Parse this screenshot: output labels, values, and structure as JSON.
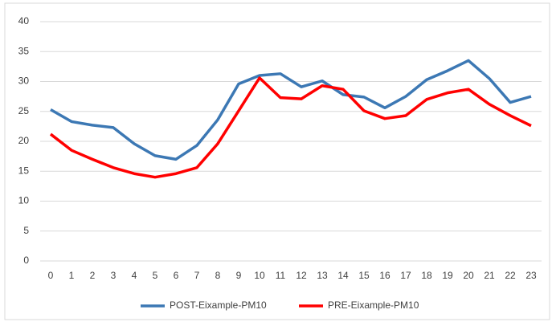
{
  "chart_data": {
    "type": "line",
    "categories": [
      "0",
      "1",
      "2",
      "3",
      "4",
      "5",
      "6",
      "7",
      "8",
      "9",
      "10",
      "11",
      "12",
      "13",
      "14",
      "15",
      "16",
      "17",
      "18",
      "19",
      "20",
      "21",
      "22",
      "23"
    ],
    "series": [
      {
        "name": "POST-Eixample-PM10",
        "color": "#3c78b4",
        "values": [
          25.3,
          23.3,
          22.7,
          22.3,
          19.6,
          17.6,
          17.0,
          19.3,
          23.6,
          29.6,
          31.0,
          31.3,
          29.1,
          30.1,
          27.8,
          27.4,
          25.6,
          27.5,
          30.3,
          31.8,
          33.5,
          30.5,
          26.5,
          27.5
        ]
      },
      {
        "name": "PRE-Eixample-PM10",
        "color": "#ff0000",
        "values": [
          21.2,
          18.5,
          17.0,
          15.6,
          14.6,
          14.0,
          14.6,
          15.6,
          19.6,
          25.1,
          30.6,
          27.3,
          27.1,
          29.3,
          28.7,
          25.1,
          23.8,
          24.3,
          27.0,
          28.1,
          28.7,
          26.2,
          24.3,
          22.6
        ]
      }
    ],
    "ylim": [
      0,
      40
    ],
    "yticks": [
      0,
      5,
      10,
      15,
      20,
      25,
      30,
      35,
      40
    ],
    "grid": true,
    "legend": "bottom"
  }
}
